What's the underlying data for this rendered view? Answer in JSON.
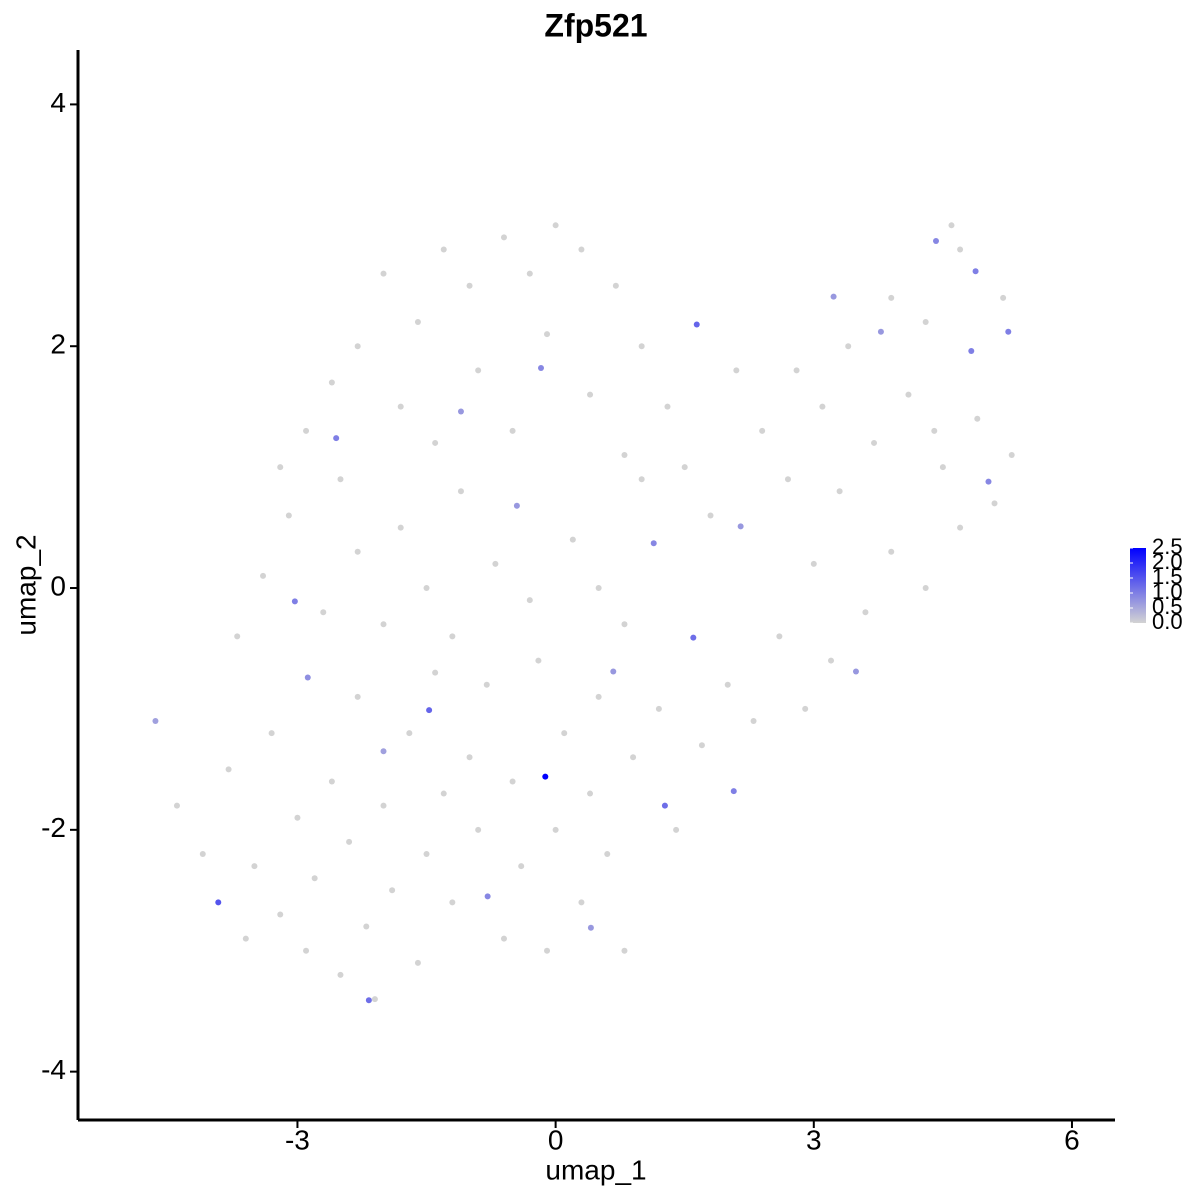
{
  "chart_data": {
    "type": "scatter",
    "title": "Zfp521",
    "x_label": "umap_1",
    "y_label": "umap_2",
    "xlim": [
      -5.55,
      6.5
    ],
    "ylim": [
      -4.4,
      4.45
    ],
    "xticks": [
      -3,
      0,
      3,
      6
    ],
    "yticks": [
      -4,
      -2,
      0,
      2,
      4
    ],
    "color_low": "#d3d3d3",
    "color_high": "#0000ff",
    "color_range": [
      0,
      2.5
    ],
    "color_ticks": [
      {
        "value": 0,
        "label": "0.0"
      },
      {
        "value": 0.5,
        "label": "0.5"
      },
      {
        "value": 1,
        "label": "1.0"
      },
      {
        "value": 1.5,
        "label": "1.5"
      },
      {
        "value": 2,
        "label": "2.0"
      },
      {
        "value": 2.5,
        "label": "2.5"
      }
    ],
    "x": [
      -4.4,
      -4.1,
      -3.8,
      -3.6,
      -3.5,
      -3.3,
      -3.2,
      -3.0,
      -2.9,
      -2.8,
      -2.6,
      -2.5,
      -2.4,
      -2.3,
      -2.2,
      -2.1,
      -2.0,
      -1.9,
      -1.7,
      -1.6,
      -1.5,
      -1.4,
      -1.3,
      -1.2,
      -1.0,
      -0.9,
      -0.8,
      -0.6,
      -0.5,
      -0.4,
      -0.2,
      -0.1,
      0.0,
      0.1,
      0.3,
      0.4,
      0.5,
      0.6,
      0.8,
      0.9,
      -3.7,
      -3.4,
      -3.1,
      -2.7,
      -2.5,
      -2.3,
      -2.0,
      -1.8,
      -1.5,
      -1.2,
      -1.1,
      -0.7,
      -0.3,
      0.2,
      0.5,
      0.8,
      1.0,
      1.2,
      1.4,
      1.7,
      2.0,
      2.3,
      2.6,
      2.9,
      3.2,
      3.6,
      3.9,
      4.3,
      4.7,
      5.1,
      5.3,
      4.9,
      4.5,
      4.1,
      3.7,
      3.3,
      3.0,
      2.7,
      2.4,
      2.1,
      1.8,
      1.5,
      2.8,
      3.4,
      3.9,
      4.3,
      4.7,
      4.6,
      5.2,
      4.4,
      3.1,
      1.3,
      1.0,
      0.7,
      0.3,
      0.0,
      -0.3,
      -0.6,
      -1.0,
      -1.3,
      -1.6,
      -2.0,
      -2.3,
      -2.6,
      -2.9,
      -3.2,
      -1.8,
      -1.4,
      -0.9,
      -0.5,
      -0.1,
      0.4,
      0.8,
      -4.65,
      -3.03,
      -2.88,
      -2.55,
      -2.0,
      -1.47,
      -1.1,
      -0.79,
      -0.45,
      -0.17,
      0.41,
      0.67,
      1.14,
      1.27,
      1.6,
      1.64,
      2.07,
      2.15,
      3.23,
      3.49,
      3.78,
      4.42,
      4.83,
      4.88,
      5.03,
      5.26,
      -3.92,
      -2.17,
      -0.12
    ],
    "y": [
      -1.8,
      -2.2,
      -1.5,
      -2.9,
      -2.3,
      -1.2,
      -2.7,
      -1.9,
      -3.0,
      -2.4,
      -1.6,
      -3.2,
      -2.1,
      -0.9,
      -2.8,
      -3.4,
      -1.8,
      -2.5,
      -1.2,
      -3.1,
      -2.2,
      -0.7,
      -1.7,
      -2.6,
      -1.4,
      -2.0,
      -0.8,
      -2.9,
      -1.6,
      -2.3,
      -0.6,
      -3.0,
      -2.0,
      -1.2,
      -2.6,
      -1.7,
      -0.9,
      -2.2,
      -3.0,
      -1.4,
      -0.4,
      0.1,
      0.6,
      -0.2,
      0.9,
      0.3,
      -0.3,
      0.5,
      0.0,
      -0.4,
      0.8,
      0.2,
      -0.1,
      0.4,
      0.0,
      -0.3,
      0.9,
      -1.0,
      -2.0,
      -1.3,
      -0.8,
      -1.1,
      -0.4,
      -1.0,
      -0.6,
      -0.2,
      0.3,
      0.0,
      0.5,
      0.7,
      1.1,
      1.4,
      1.0,
      1.6,
      1.2,
      0.8,
      0.2,
      0.9,
      1.3,
      1.8,
      0.6,
      1.0,
      1.8,
      2.0,
      2.4,
      2.2,
      2.8,
      3.0,
      2.4,
      1.3,
      1.5,
      1.5,
      2.0,
      2.5,
      2.8,
      3.0,
      2.6,
      2.9,
      2.5,
      2.8,
      2.2,
      2.6,
      2.0,
      1.7,
      1.3,
      1.0,
      1.5,
      1.2,
      1.8,
      1.3,
      2.1,
      1.6,
      1.1,
      -1.1,
      -0.11,
      -0.74,
      1.24,
      -1.35,
      -1.01,
      1.46,
      -2.55,
      0.68,
      1.82,
      -2.81,
      -0.69,
      0.37,
      -1.8,
      -0.41,
      2.18,
      -1.68,
      0.51,
      2.41,
      -0.69,
      2.12,
      2.87,
      1.96,
      2.62,
      0.88,
      2.12,
      -2.6,
      -3.41,
      -1.56
    ],
    "values": [
      0,
      0,
      0,
      0,
      0,
      0,
      0,
      0,
      0,
      0,
      0,
      0,
      0,
      0,
      0,
      0,
      0,
      0,
      0,
      0,
      0,
      0,
      0,
      0,
      0,
      0,
      0,
      0,
      0,
      0,
      0,
      0,
      0,
      0,
      0,
      0,
      0,
      0,
      0,
      0,
      0,
      0,
      0,
      0,
      0,
      0,
      0,
      0,
      0,
      0,
      0,
      0,
      0,
      0,
      0,
      0,
      0,
      0,
      0,
      0,
      0,
      0,
      0,
      0,
      0,
      0,
      0,
      0,
      0,
      0,
      0,
      0,
      0,
      0,
      0,
      0,
      0,
      0,
      0,
      0,
      0,
      0,
      0,
      0,
      0,
      0,
      0,
      0,
      0,
      0,
      0,
      0,
      0,
      0,
      0,
      0,
      0,
      0,
      0,
      0,
      0,
      0,
      0,
      0,
      0,
      0,
      0,
      0,
      0,
      0,
      0,
      0,
      0,
      0.6,
      1.0,
      0.8,
      1.0,
      0.6,
      1.3,
      0.7,
      0.9,
      0.7,
      0.9,
      0.7,
      0.7,
      0.9,
      1.2,
      1.2,
      1.3,
      1.0,
      0.7,
      0.7,
      0.7,
      0.7,
      0.9,
      1.0,
      1.0,
      0.9,
      1.0,
      1.5,
      1.2,
      2.5
    ]
  }
}
